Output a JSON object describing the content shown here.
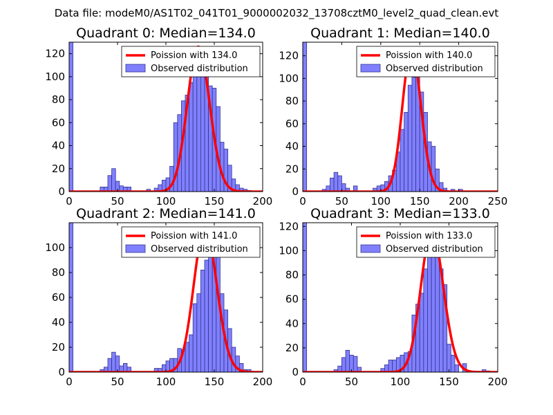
{
  "figure": {
    "suptitle": "Data file: modeM0/AS1T02_041T01_9000002032_13708cztM0_level2_quad_clean.evt",
    "colors": {
      "hist_fill": "#8080ff",
      "hist_edge": "#33338c",
      "fit_line": "#ff0000",
      "axes": "#000000"
    }
  },
  "chart_data": [
    {
      "type": "bar",
      "title": "Quadrant 0: Median=134.0",
      "xlim": [
        0,
        200
      ],
      "ylim": [
        0,
        130
      ],
      "xticks": [
        0,
        50,
        100,
        150,
        200
      ],
      "yticks": [
        0,
        20,
        40,
        60,
        80,
        100,
        120
      ],
      "legend": {
        "placement": "top-right",
        "entries": [
          "Poission with 134.0",
          "Observed distribution"
        ]
      },
      "hist": {
        "bin_width": 4,
        "bins": [
          [
            0,
            130
          ],
          [
            32,
            4
          ],
          [
            36,
            4
          ],
          [
            40,
            14
          ],
          [
            44,
            20
          ],
          [
            48,
            9
          ],
          [
            52,
            5
          ],
          [
            56,
            4
          ],
          [
            60,
            4
          ],
          [
            80,
            2
          ],
          [
            88,
            3
          ],
          [
            92,
            6
          ],
          [
            96,
            10
          ],
          [
            100,
            12
          ],
          [
            104,
            22
          ],
          [
            108,
            60
          ],
          [
            112,
            67
          ],
          [
            116,
            79
          ],
          [
            120,
            84
          ],
          [
            124,
            95
          ],
          [
            128,
            109
          ],
          [
            132,
            123
          ],
          [
            136,
            112
          ],
          [
            140,
            104
          ],
          [
            144,
            92
          ],
          [
            148,
            90
          ],
          [
            152,
            74
          ],
          [
            156,
            43
          ],
          [
            160,
            37
          ],
          [
            164,
            23
          ],
          [
            168,
            11
          ],
          [
            172,
            6
          ],
          [
            176,
            3
          ],
          [
            180,
            2
          ],
          [
            184,
            1
          ]
        ]
      },
      "series": [
        {
          "name": "Poission with 134.0",
          "mean": 134.0,
          "scale": 126
        }
      ]
    },
    {
      "type": "bar",
      "title": "Quadrant 1: Median=140.0",
      "xlim": [
        0,
        250
      ],
      "ylim": [
        0,
        132
      ],
      "xticks": [
        0,
        50,
        100,
        150,
        200,
        250
      ],
      "yticks": [
        0,
        20,
        40,
        60,
        80,
        100,
        120
      ],
      "legend": {
        "placement": "top-right",
        "entries": [
          "Poission with 140.0",
          "Observed distribution"
        ]
      },
      "hist": {
        "bin_width": 5,
        "bins": [
          [
            0,
            132
          ],
          [
            25,
            2
          ],
          [
            30,
            5
          ],
          [
            35,
            12
          ],
          [
            40,
            17
          ],
          [
            45,
            14
          ],
          [
            50,
            7
          ],
          [
            55,
            3
          ],
          [
            65,
            5
          ],
          [
            90,
            3
          ],
          [
            95,
            5
          ],
          [
            100,
            6
          ],
          [
            105,
            9
          ],
          [
            110,
            14
          ],
          [
            115,
            19
          ],
          [
            120,
            35
          ],
          [
            125,
            55
          ],
          [
            130,
            70
          ],
          [
            135,
            94
          ],
          [
            140,
            101
          ],
          [
            145,
            125
          ],
          [
            150,
            88
          ],
          [
            155,
            70
          ],
          [
            160,
            44
          ],
          [
            165,
            40
          ],
          [
            170,
            20
          ],
          [
            175,
            8
          ],
          [
            180,
            3
          ],
          [
            190,
            2
          ],
          [
            200,
            2
          ]
        ]
      },
      "series": [
        {
          "name": "Poission with 140.0",
          "mean": 140.0,
          "scale": 126
        }
      ]
    },
    {
      "type": "bar",
      "title": "Quadrant 2: Median=141.0",
      "xlim": [
        0,
        200
      ],
      "ylim": [
        0,
        120
      ],
      "xticks": [
        0,
        50,
        100,
        150,
        200
      ],
      "yticks": [
        0,
        20,
        40,
        60,
        80,
        100
      ],
      "legend": {
        "placement": "top-right",
        "entries": [
          "Poission with 141.0",
          "Observed distribution"
        ]
      },
      "hist": {
        "bin_width": 4,
        "bins": [
          [
            0,
            120
          ],
          [
            32,
            2
          ],
          [
            36,
            4
          ],
          [
            40,
            11
          ],
          [
            44,
            16
          ],
          [
            48,
            13
          ],
          [
            52,
            5
          ],
          [
            56,
            7
          ],
          [
            60,
            4
          ],
          [
            88,
            3
          ],
          [
            92,
            3
          ],
          [
            96,
            6
          ],
          [
            100,
            9
          ],
          [
            104,
            11
          ],
          [
            108,
            11
          ],
          [
            112,
            19
          ],
          [
            116,
            18
          ],
          [
            120,
            24
          ],
          [
            124,
            30
          ],
          [
            128,
            55
          ],
          [
            132,
            63
          ],
          [
            136,
            82
          ],
          [
            140,
            90
          ],
          [
            144,
            99
          ],
          [
            148,
            105
          ],
          [
            152,
            112
          ],
          [
            156,
            63
          ],
          [
            160,
            50
          ],
          [
            164,
            35
          ],
          [
            168,
            20
          ],
          [
            172,
            13
          ],
          [
            176,
            7
          ],
          [
            180,
            2
          ],
          [
            184,
            2
          ]
        ]
      },
      "series": [
        {
          "name": "Poission with 141.0",
          "mean": 141.0,
          "scale": 116
        }
      ]
    },
    {
      "type": "bar",
      "title": "Quadrant 3: Median=133.0",
      "xlim": [
        0,
        200
      ],
      "ylim": [
        0,
        123
      ],
      "xticks": [
        0,
        50,
        100,
        150,
        200
      ],
      "yticks": [
        0,
        20,
        40,
        60,
        80,
        100,
        120
      ],
      "legend": {
        "placement": "top-right",
        "entries": [
          "Poission with 133.0",
          "Observed distribution"
        ]
      },
      "hist": {
        "bin_width": 4,
        "bins": [
          [
            0,
            123
          ],
          [
            32,
            2
          ],
          [
            36,
            5
          ],
          [
            40,
            12
          ],
          [
            44,
            18
          ],
          [
            48,
            14
          ],
          [
            52,
            13
          ],
          [
            56,
            4
          ],
          [
            80,
            3
          ],
          [
            84,
            6
          ],
          [
            88,
            10
          ],
          [
            92,
            10
          ],
          [
            96,
            12
          ],
          [
            100,
            14
          ],
          [
            104,
            16
          ],
          [
            108,
            17
          ],
          [
            112,
            47
          ],
          [
            116,
            56
          ],
          [
            120,
            65
          ],
          [
            124,
            85
          ],
          [
            128,
            95
          ],
          [
            132,
            107
          ],
          [
            136,
            109
          ],
          [
            140,
            85
          ],
          [
            144,
            72
          ],
          [
            148,
            23
          ],
          [
            152,
            14
          ],
          [
            156,
            6
          ],
          [
            164,
            7
          ],
          [
            184,
            2
          ],
          [
            188,
            1
          ]
        ]
      },
      "series": [
        {
          "name": "Poission with 133.0",
          "mean": 133.0,
          "scale": 116
        }
      ]
    }
  ]
}
